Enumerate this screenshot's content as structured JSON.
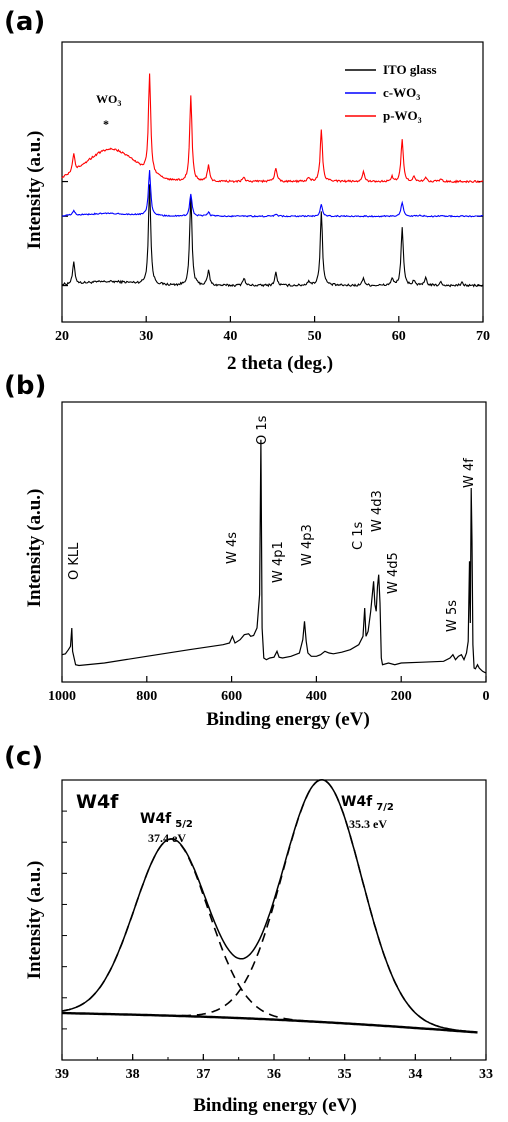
{
  "chart_data": [
    {
      "panel": "(a)",
      "type": "line",
      "xlabel": "2 theta (deg.)",
      "ylabel": "Intensity (a.u.)",
      "xlim": [
        20,
        70
      ],
      "xticks": [
        "20",
        "30",
        "40",
        "50",
        "60",
        "70"
      ],
      "legend_position": "top-right",
      "annotation": {
        "text": "WO",
        "sub": "3",
        "mark": "*",
        "x": 25.5
      },
      "series": [
        {
          "name": "ITO glass",
          "color": "#000000",
          "baseline": 0.0,
          "noise": 0.35,
          "hump": {
            "center": 25.5,
            "width": 3.2,
            "height": 0.6
          },
          "peaks": [
            [
              21.4,
              3.3
            ],
            [
              30.4,
              15.5
            ],
            [
              35.3,
              14.0
            ],
            [
              37.4,
              2.3
            ],
            [
              41.6,
              1.2
            ],
            [
              45.4,
              2.0
            ],
            [
              49.3,
              0.7
            ],
            [
              50.8,
              11.5
            ],
            [
              55.8,
              1.2
            ],
            [
              59.2,
              1.0
            ],
            [
              60.4,
              9.0
            ],
            [
              61.8,
              0.8
            ],
            [
              63.2,
              1.1
            ],
            [
              65.0,
              0.5
            ],
            [
              67.5,
              0.4
            ]
          ]
        },
        {
          "name": "c-WO3",
          "label": "c-WO",
          "sub": "3",
          "color": "#0000ff",
          "baseline": 10.8,
          "noise": 0.2,
          "hump": {
            "center": 25.5,
            "width": 3.0,
            "height": 0.4
          },
          "peaks": [
            [
              21.4,
              0.8
            ],
            [
              30.4,
              7.0
            ],
            [
              35.3,
              3.5
            ],
            [
              37.4,
              0.6
            ],
            [
              45.4,
              0.3
            ],
            [
              50.8,
              1.8
            ],
            [
              60.4,
              2.2
            ],
            [
              62.5,
              0.2
            ]
          ]
        },
        {
          "name": "p-WO3",
          "label": "p-WO",
          "sub": "3",
          "color": "#ff0000",
          "baseline": 16.2,
          "noise": 0.3,
          "hump": {
            "center": 25.8,
            "width": 2.9,
            "height": 5.0
          },
          "peaks": [
            [
              21.4,
              2.8
            ],
            [
              30.4,
              15.5
            ],
            [
              35.3,
              13.5
            ],
            [
              37.4,
              2.5
            ],
            [
              41.6,
              0.6
            ],
            [
              45.4,
              2.2
            ],
            [
              49.3,
              0.6
            ],
            [
              50.8,
              8.2
            ],
            [
              55.8,
              1.5
            ],
            [
              59.2,
              0.7
            ],
            [
              60.4,
              6.6
            ],
            [
              61.8,
              0.8
            ],
            [
              63.2,
              0.7
            ],
            [
              65.0,
              0.5
            ]
          ]
        }
      ]
    },
    {
      "panel": "(b)",
      "type": "line",
      "xlabel": "Binding energy (eV)",
      "ylabel": "Intensity (a.u.)",
      "xlim": [
        1000,
        0
      ],
      "xticks": [
        "1000",
        "800",
        "600",
        "400",
        "200",
        "0"
      ],
      "series": [
        {
          "color": "#000000",
          "points": [
            [
              1000,
              14
            ],
            [
              992,
              14.5
            ],
            [
              985,
              17
            ],
            [
              980,
              19
            ],
            [
              977,
              30
            ],
            [
              975,
              16
            ],
            [
              968,
              8
            ],
            [
              960,
              7.5
            ],
            [
              900,
              9
            ],
            [
              800,
              13
            ],
            [
              700,
              17
            ],
            [
              620,
              20
            ],
            [
              605,
              21
            ],
            [
              598,
              25
            ],
            [
              592,
              21
            ],
            [
              580,
              23
            ],
            [
              570,
              26
            ],
            [
              560,
              26.5
            ],
            [
              555,
              25
            ],
            [
              548,
              25.5
            ],
            [
              540,
              30
            ],
            [
              534,
              50
            ],
            [
              531,
              143
            ],
            [
              528,
              30
            ],
            [
              524,
              12
            ],
            [
              518,
              11
            ],
            [
              510,
              12
            ],
            [
              500,
              12.5
            ],
            [
              493,
              16
            ],
            [
              488,
              12.5
            ],
            [
              480,
              12
            ],
            [
              460,
              13
            ],
            [
              440,
              15
            ],
            [
              432,
              23
            ],
            [
              428,
              34
            ],
            [
              424,
              22
            ],
            [
              420,
              15
            ],
            [
              412,
              13
            ],
            [
              400,
              13
            ],
            [
              390,
              14
            ],
            [
              380,
              16
            ],
            [
              370,
              15
            ],
            [
              360,
              14.5
            ],
            [
              340,
              15.5
            ],
            [
              320,
              17
            ],
            [
              300,
              20
            ],
            [
              290,
              25
            ],
            [
              286,
              42
            ],
            [
              283,
              25
            ],
            [
              278,
              28
            ],
            [
              272,
              40
            ],
            [
              265,
              58
            ],
            [
              262,
              44
            ],
            [
              259,
              40
            ],
            [
              256,
              55
            ],
            [
              253,
              62
            ],
            [
              250,
              45
            ],
            [
              247,
              12
            ],
            [
              244,
              8
            ],
            [
              230,
              9
            ],
            [
              215,
              8
            ],
            [
              200,
              9
            ],
            [
              150,
              9.5
            ],
            [
              100,
              10
            ],
            [
              85,
              12
            ],
            [
              78,
              14
            ],
            [
              72,
              11
            ],
            [
              65,
              13
            ],
            [
              58,
              14
            ],
            [
              52,
              11
            ],
            [
              46,
              15
            ],
            [
              42,
              22
            ],
            [
              39,
              70
            ],
            [
              37,
              33
            ],
            [
              35,
              114
            ],
            [
              33,
              82
            ],
            [
              31,
              20
            ],
            [
              28,
              6
            ],
            [
              25,
              5.5
            ],
            [
              20,
              8
            ],
            [
              16,
              6
            ],
            [
              12,
              5
            ],
            [
              8,
              4
            ],
            [
              4,
              3.5
            ],
            [
              0,
              3
            ]
          ]
        }
      ],
      "labels": [
        "O KLL",
        "W 4s",
        "O 1s",
        "W 4p1",
        "W 4p3",
        "C 1s",
        "W 4d3",
        "W 4d5",
        "W 5s",
        "W 4f"
      ]
    },
    {
      "panel": "(c)",
      "type": "line",
      "xlabel": "Binding energy (eV)",
      "ylabel": "Intensity (a.u.)",
      "xlim": [
        39,
        33
      ],
      "xticks": [
        "39",
        "38",
        "37",
        "36",
        "35",
        "34",
        "33"
      ],
      "title": "W4f",
      "annotations": [
        {
          "main": "W4f",
          "sub": "5/2",
          "value": "37.4 eV"
        },
        {
          "main": "W4f",
          "sub": "7/2",
          "value": "35.3 eV"
        }
      ],
      "background": {
        "start": 0.07,
        "end": 0.0
      },
      "components": [
        {
          "center": 37.45,
          "sigma": 0.52,
          "amp": 0.62
        },
        {
          "center": 35.32,
          "sigma": 0.56,
          "amp": 0.85
        }
      ]
    }
  ]
}
